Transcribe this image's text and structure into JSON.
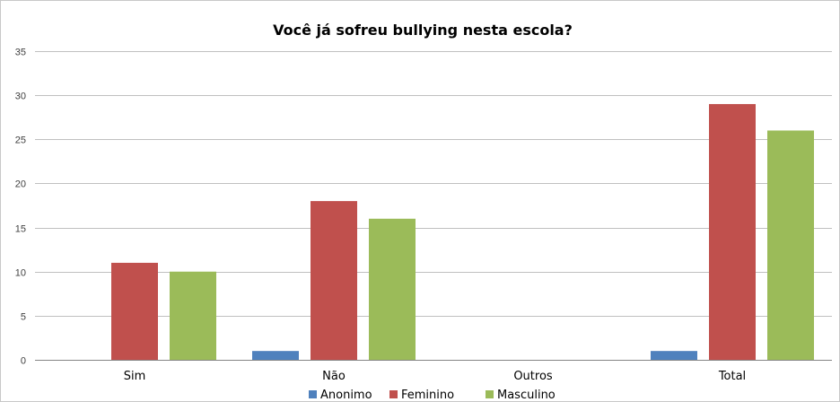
{
  "chart_data": {
    "type": "bar",
    "title": "Você já sofreu bullying nesta escola?",
    "categories": [
      "Sim",
      "Não",
      "Outros",
      "Total"
    ],
    "series": [
      {
        "name": "Anonimo",
        "color": "#4f81bd",
        "values": [
          0,
          1,
          0,
          1
        ]
      },
      {
        "name": "Feminino",
        "color": "#c0504d",
        "values": [
          11,
          18,
          0,
          29
        ]
      },
      {
        "name": "Masculino",
        "color": "#9bbb59",
        "values": [
          10,
          16,
          0,
          26
        ]
      }
    ],
    "ylim": [
      0,
      35
    ],
    "yticks": [
      0,
      5,
      10,
      15,
      20,
      25,
      30,
      35
    ],
    "grid": true,
    "legend": "bottom"
  }
}
